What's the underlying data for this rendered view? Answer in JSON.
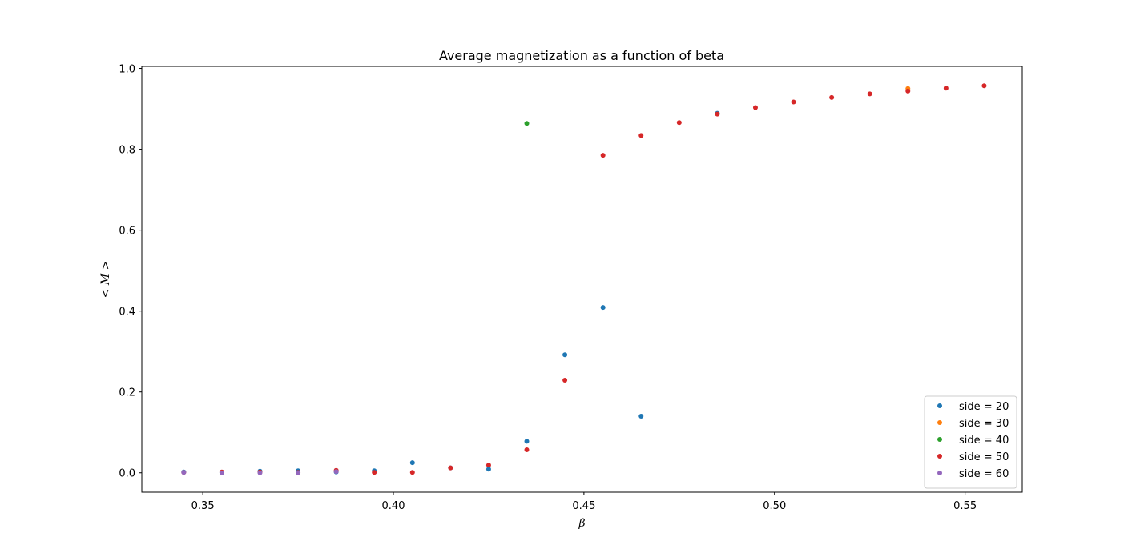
{
  "chart_data": {
    "type": "scatter",
    "title": "Average magnetization as a function of beta",
    "xlabel": "β",
    "ylabel": "< M >",
    "xlim": [
      0.334,
      0.565
    ],
    "ylim": [
      -0.048,
      1.005
    ],
    "x_ticks": [
      0.35,
      0.4,
      0.45,
      0.5,
      0.55
    ],
    "x_tick_labels": [
      "0.35",
      "0.40",
      "0.45",
      "0.50",
      "0.55"
    ],
    "y_ticks": [
      0.0,
      0.2,
      0.4,
      0.6,
      0.8,
      1.0
    ],
    "y_tick_labels": [
      "0.0",
      "0.2",
      "0.4",
      "0.6",
      "0.8",
      "1.0"
    ],
    "grid": false,
    "legend_position": "bottom-right",
    "series": [
      {
        "name": "side = 20",
        "color": "#1f77b4",
        "points": [
          [
            0.345,
            0.002
          ],
          [
            0.355,
            0.001
          ],
          [
            0.365,
            0.004
          ],
          [
            0.375,
            0.005
          ],
          [
            0.385,
            0.002
          ],
          [
            0.395,
            0.005
          ],
          [
            0.405,
            0.025
          ],
          [
            0.415,
            0.012
          ],
          [
            0.425,
            0.009
          ],
          [
            0.435,
            0.078
          ],
          [
            0.445,
            0.292
          ],
          [
            0.455,
            0.409
          ],
          [
            0.465,
            0.14
          ],
          [
            0.485,
            0.889
          ]
        ]
      },
      {
        "name": "side = 30",
        "color": "#ff7f0e",
        "points": [
          [
            0.535,
            0.95
          ]
        ]
      },
      {
        "name": "side = 40",
        "color": "#2ca02c",
        "points": [
          [
            0.435,
            0.864
          ]
        ]
      },
      {
        "name": "side = 50",
        "color": "#d62728",
        "points": [
          [
            0.345,
            0.001
          ],
          [
            0.355,
            0.002
          ],
          [
            0.365,
            0.002
          ],
          [
            0.375,
            0.001
          ],
          [
            0.385,
            0.006
          ],
          [
            0.395,
            0.001
          ],
          [
            0.405,
            0.001
          ],
          [
            0.415,
            0.012
          ],
          [
            0.425,
            0.019
          ],
          [
            0.435,
            0.057
          ],
          [
            0.445,
            0.229
          ],
          [
            0.455,
            0.785
          ],
          [
            0.465,
            0.834
          ],
          [
            0.475,
            0.866
          ],
          [
            0.485,
            0.887
          ],
          [
            0.495,
            0.903
          ],
          [
            0.505,
            0.917
          ],
          [
            0.515,
            0.928
          ],
          [
            0.525,
            0.937
          ],
          [
            0.535,
            0.944
          ],
          [
            0.545,
            0.951
          ],
          [
            0.555,
            0.957
          ]
        ]
      },
      {
        "name": "side = 60",
        "color": "#9467bd",
        "points": [
          [
            0.345,
            0.001
          ],
          [
            0.355,
            0.0
          ],
          [
            0.365,
            0.0
          ],
          [
            0.375,
            0.0
          ],
          [
            0.385,
            0.003
          ]
        ]
      }
    ]
  }
}
